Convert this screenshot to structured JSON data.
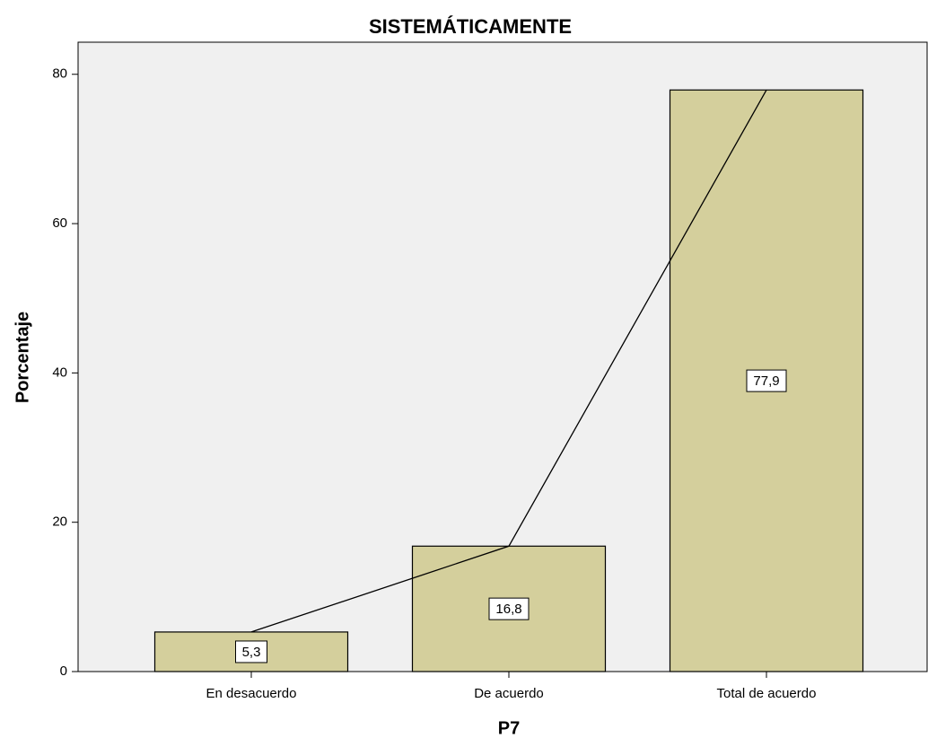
{
  "chart_data": {
    "type": "bar",
    "title": "SISTEMÁTICAMENTE",
    "x_label": "P7",
    "y_label": "Porcentaje",
    "categories": [
      "En desacuerdo",
      "De acuerdo",
      "Total de acuerdo"
    ],
    "values": [
      5.3,
      16.8,
      77.9
    ],
    "value_labels": [
      "5,3",
      "16,8",
      "77,9"
    ],
    "color": "#d4cf9c",
    "line": true,
    "ylim": [
      0,
      84.3
    ],
    "yticks": [
      0,
      20,
      40,
      60,
      80
    ],
    "grid": false
  }
}
